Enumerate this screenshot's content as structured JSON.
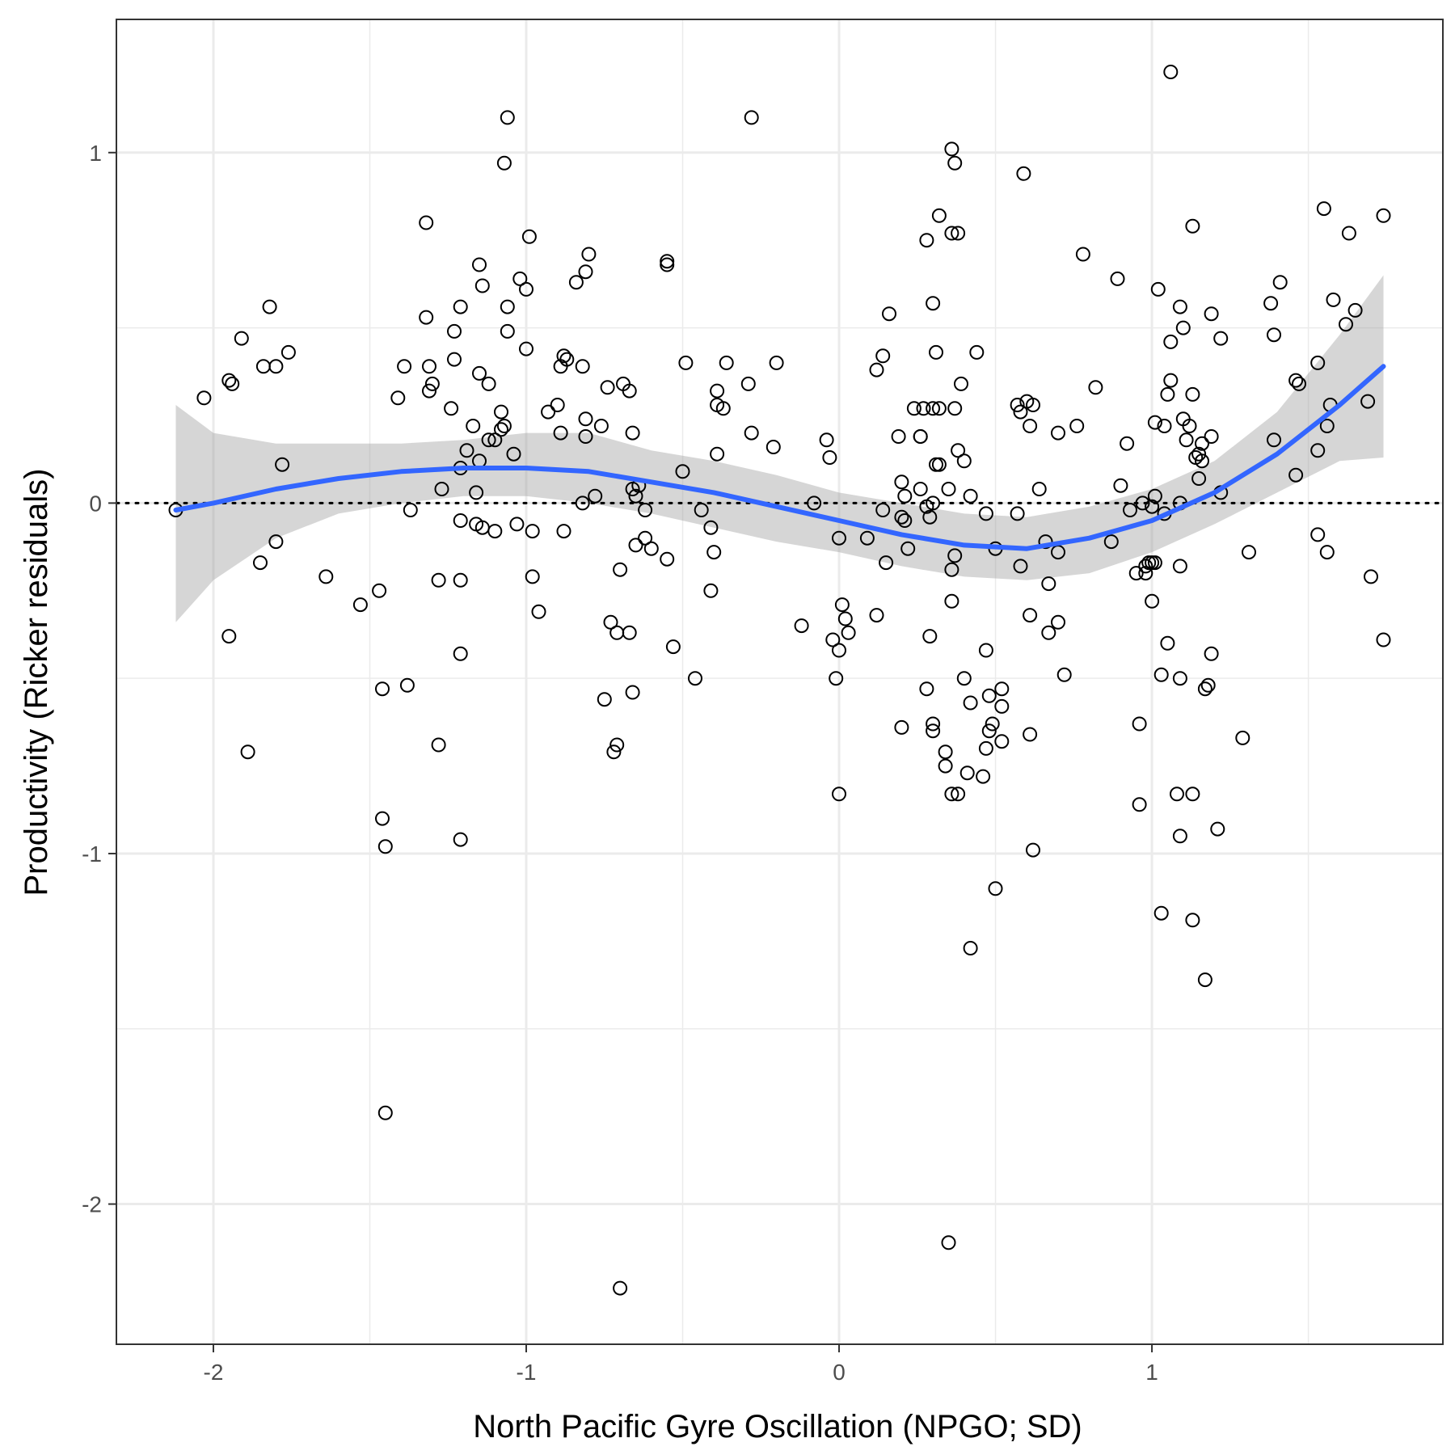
{
  "chart_data": {
    "type": "scatter",
    "title": "",
    "xlabel": "North Pacific Gyre Oscillation (NPGO; SD)",
    "ylabel": "Productivity (Ricker residuals)",
    "xlim": [
      -2.31,
      1.93
    ],
    "ylim": [
      -2.4,
      1.38
    ],
    "x_ticks": [
      -2,
      -1,
      0,
      1
    ],
    "x_tick_labels": [
      "-2",
      "-1",
      "0",
      "1"
    ],
    "y_ticks": [
      -2,
      -1,
      0,
      1
    ],
    "y_tick_labels": [
      "-2",
      "-1",
      "0",
      "1"
    ],
    "grid": true,
    "reference_line_y": 0,
    "colors": {
      "points": "#000000",
      "smooth_line": "#3366FF",
      "confidence_band": "#999999",
      "grid_major": "#EBEBEB",
      "panel_border": "#333333"
    },
    "smooth": {
      "x": [
        -2.12,
        -2.0,
        -1.8,
        -1.6,
        -1.4,
        -1.2,
        -1.0,
        -0.8,
        -0.6,
        -0.4,
        -0.2,
        0.0,
        0.2,
        0.4,
        0.6,
        0.8,
        1.0,
        1.2,
        1.4,
        1.6,
        1.74
      ],
      "y": [
        -0.02,
        0.0,
        0.04,
        0.07,
        0.09,
        0.1,
        0.1,
        0.09,
        0.06,
        0.03,
        -0.01,
        -0.05,
        -0.09,
        -0.12,
        -0.13,
        -0.1,
        -0.05,
        0.03,
        0.14,
        0.28,
        0.39
      ],
      "lower": [
        -0.34,
        -0.22,
        -0.1,
        -0.03,
        0.0,
        0.02,
        0.02,
        0.0,
        -0.03,
        -0.07,
        -0.11,
        -0.14,
        -0.18,
        -0.21,
        -0.22,
        -0.2,
        -0.14,
        -0.06,
        0.03,
        0.12,
        0.13
      ],
      "upper": [
        0.28,
        0.2,
        0.17,
        0.17,
        0.17,
        0.18,
        0.2,
        0.2,
        0.15,
        0.12,
        0.08,
        0.03,
        0.0,
        -0.03,
        -0.04,
        -0.01,
        0.04,
        0.12,
        0.26,
        0.48,
        0.65
      ]
    },
    "points": [
      [
        -2.12,
        -0.02
      ],
      [
        -2.03,
        0.3
      ],
      [
        -1.95,
        0.35
      ],
      [
        -1.95,
        -0.38
      ],
      [
        -1.94,
        0.34
      ],
      [
        -1.91,
        0.47
      ],
      [
        -1.89,
        -0.71
      ],
      [
        -1.85,
        -0.17
      ],
      [
        -1.84,
        0.39
      ],
      [
        -1.82,
        0.56
      ],
      [
        -1.8,
        0.39
      ],
      [
        -1.8,
        -0.11
      ],
      [
        -1.78,
        0.11
      ],
      [
        -1.76,
        0.43
      ],
      [
        -1.64,
        -0.21
      ],
      [
        -1.53,
        -0.29
      ],
      [
        -1.47,
        -0.25
      ],
      [
        -1.46,
        -0.53
      ],
      [
        -1.46,
        -0.9
      ],
      [
        -1.45,
        -0.98
      ],
      [
        -1.45,
        -1.74
      ],
      [
        -1.41,
        0.3
      ],
      [
        -1.39,
        0.39
      ],
      [
        -1.38,
        -0.52
      ],
      [
        -1.37,
        -0.02
      ],
      [
        -1.32,
        0.8
      ],
      [
        -1.32,
        0.53
      ],
      [
        -1.31,
        0.39
      ],
      [
        -1.31,
        0.32
      ],
      [
        -1.3,
        0.34
      ],
      [
        -1.28,
        -0.69
      ],
      [
        -1.28,
        -0.22
      ],
      [
        -1.27,
        0.04
      ],
      [
        -1.24,
        0.27
      ],
      [
        -1.23,
        0.49
      ],
      [
        -1.23,
        0.41
      ],
      [
        -1.21,
        0.56
      ],
      [
        -1.21,
        0.1
      ],
      [
        -1.21,
        -0.05
      ],
      [
        -1.21,
        -0.22
      ],
      [
        -1.21,
        -0.43
      ],
      [
        -1.21,
        -0.96
      ],
      [
        -1.19,
        0.15
      ],
      [
        -1.17,
        0.22
      ],
      [
        -1.16,
        0.03
      ],
      [
        -1.16,
        -0.06
      ],
      [
        -1.15,
        0.37
      ],
      [
        -1.15,
        0.68
      ],
      [
        -1.15,
        0.12
      ],
      [
        -1.14,
        0.62
      ],
      [
        -1.14,
        -0.07
      ],
      [
        -1.12,
        0.34
      ],
      [
        -1.12,
        0.18
      ],
      [
        -1.1,
        0.18
      ],
      [
        -1.1,
        -0.08
      ],
      [
        -1.08,
        0.26
      ],
      [
        -1.08,
        0.21
      ],
      [
        -1.07,
        0.22
      ],
      [
        -1.07,
        0.97
      ],
      [
        -1.06,
        1.1
      ],
      [
        -1.06,
        0.56
      ],
      [
        -1.06,
        0.49
      ],
      [
        -1.04,
        0.14
      ],
      [
        -1.03,
        -0.06
      ],
      [
        -1.02,
        0.64
      ],
      [
        -1.0,
        0.61
      ],
      [
        -1.0,
        0.44
      ],
      [
        -0.99,
        0.76
      ],
      [
        -0.98,
        -0.08
      ],
      [
        -0.98,
        -0.21
      ],
      [
        -0.96,
        -0.31
      ],
      [
        -0.93,
        0.26
      ],
      [
        -0.9,
        0.28
      ],
      [
        -0.89,
        0.39
      ],
      [
        -0.89,
        0.2
      ],
      [
        -0.88,
        0.42
      ],
      [
        -0.88,
        -0.08
      ],
      [
        -0.87,
        0.41
      ],
      [
        -0.84,
        0.63
      ],
      [
        -0.82,
        0.39
      ],
      [
        -0.82,
        -0.0
      ],
      [
        -0.81,
        0.66
      ],
      [
        -0.81,
        0.24
      ],
      [
        -0.81,
        0.19
      ],
      [
        -0.8,
        0.71
      ],
      [
        -0.78,
        0.02
      ],
      [
        -0.76,
        0.22
      ],
      [
        -0.75,
        -0.56
      ],
      [
        -0.74,
        0.33
      ],
      [
        -0.73,
        -0.34
      ],
      [
        -0.72,
        -0.71
      ],
      [
        -0.71,
        -0.69
      ],
      [
        -0.71,
        -0.37
      ],
      [
        -0.7,
        -0.19
      ],
      [
        -0.7,
        -2.24
      ],
      [
        -0.69,
        0.34
      ],
      [
        -0.67,
        -0.37
      ],
      [
        -0.67,
        0.32
      ],
      [
        -0.66,
        -0.54
      ],
      [
        -0.66,
        0.2
      ],
      [
        -0.66,
        0.04
      ],
      [
        -0.65,
        -0.12
      ],
      [
        -0.65,
        0.02
      ],
      [
        -0.64,
        0.05
      ],
      [
        -0.62,
        -0.1
      ],
      [
        -0.62,
        -0.02
      ],
      [
        -0.6,
        -0.13
      ],
      [
        -0.55,
        0.69
      ],
      [
        -0.55,
        0.68
      ],
      [
        -0.55,
        -0.16
      ],
      [
        -0.53,
        -0.41
      ],
      [
        -0.5,
        0.09
      ],
      [
        -0.49,
        0.4
      ],
      [
        -0.46,
        -0.5
      ],
      [
        -0.44,
        -0.02
      ],
      [
        -0.41,
        -0.07
      ],
      [
        -0.41,
        -0.25
      ],
      [
        -0.4,
        -0.14
      ],
      [
        -0.39,
        0.32
      ],
      [
        -0.39,
        0.28
      ],
      [
        -0.39,
        0.14
      ],
      [
        -0.37,
        0.27
      ],
      [
        -0.36,
        0.4
      ],
      [
        -0.29,
        0.34
      ],
      [
        -0.28,
        1.1
      ],
      [
        -0.28,
        0.2
      ],
      [
        -0.21,
        0.16
      ],
      [
        -0.2,
        0.4
      ],
      [
        -0.12,
        -0.35
      ],
      [
        -0.08,
        0.0
      ],
      [
        -0.04,
        0.18
      ],
      [
        -0.03,
        0.13
      ],
      [
        -0.02,
        -0.39
      ],
      [
        -0.01,
        -0.5
      ],
      [
        -0.0,
        -0.83
      ],
      [
        0.0,
        -0.1
      ],
      [
        0.0,
        -0.42
      ],
      [
        0.01,
        -0.29
      ],
      [
        0.02,
        -0.33
      ],
      [
        0.03,
        -0.37
      ],
      [
        0.09,
        -0.1
      ],
      [
        0.12,
        0.38
      ],
      [
        0.12,
        -0.32
      ],
      [
        0.14,
        0.42
      ],
      [
        0.14,
        -0.02
      ],
      [
        0.15,
        -0.17
      ],
      [
        0.16,
        0.54
      ],
      [
        0.19,
        0.19
      ],
      [
        0.2,
        0.06
      ],
      [
        0.2,
        -0.04
      ],
      [
        0.2,
        -0.64
      ],
      [
        0.21,
        0.02
      ],
      [
        0.21,
        -0.05
      ],
      [
        0.22,
        -0.13
      ],
      [
        0.24,
        0.27
      ],
      [
        0.26,
        0.19
      ],
      [
        0.26,
        0.19
      ],
      [
        0.26,
        0.04
      ],
      [
        0.27,
        0.27
      ],
      [
        0.28,
        -0.01
      ],
      [
        0.28,
        -0.53
      ],
      [
        0.28,
        0.75
      ],
      [
        0.29,
        -0.04
      ],
      [
        0.29,
        -0.38
      ],
      [
        0.3,
        0.27
      ],
      [
        0.3,
        0.0
      ],
      [
        0.3,
        -0.65
      ],
      [
        0.3,
        0.57
      ],
      [
        0.3,
        -0.63
      ],
      [
        0.31,
        0.43
      ],
      [
        0.31,
        0.11
      ],
      [
        0.32,
        0.82
      ],
      [
        0.32,
        0.11
      ],
      [
        0.32,
        0.27
      ],
      [
        0.34,
        -0.71
      ],
      [
        0.34,
        -0.75
      ],
      [
        0.35,
        0.04
      ],
      [
        0.35,
        -2.11
      ],
      [
        0.36,
        -0.19
      ],
      [
        0.36,
        -0.28
      ],
      [
        0.37,
        -0.15
      ],
      [
        0.36,
        1.01
      ],
      [
        0.37,
        0.97
      ],
      [
        0.36,
        0.77
      ],
      [
        0.36,
        -0.83
      ],
      [
        0.37,
        0.27
      ],
      [
        0.38,
        0.15
      ],
      [
        0.38,
        -0.83
      ],
      [
        0.38,
        0.77
      ],
      [
        0.39,
        0.34
      ],
      [
        0.4,
        0.12
      ],
      [
        0.4,
        -0.5
      ],
      [
        0.41,
        -0.77
      ],
      [
        0.42,
        -0.57
      ],
      [
        0.42,
        0.02
      ],
      [
        0.42,
        -1.27
      ],
      [
        0.44,
        0.43
      ],
      [
        0.46,
        -0.78
      ],
      [
        0.47,
        -0.03
      ],
      [
        0.47,
        -0.42
      ],
      [
        0.47,
        -0.7
      ],
      [
        0.48,
        -0.55
      ],
      [
        0.48,
        -0.65
      ],
      [
        0.49,
        -0.63
      ],
      [
        0.5,
        -0.13
      ],
      [
        0.5,
        -1.1
      ],
      [
        0.52,
        -0.53
      ],
      [
        0.52,
        -0.58
      ],
      [
        0.52,
        -0.68
      ],
      [
        0.57,
        -0.03
      ],
      [
        0.57,
        0.28
      ],
      [
        0.58,
        -0.18
      ],
      [
        0.58,
        0.26
      ],
      [
        0.59,
        0.94
      ],
      [
        0.6,
        0.29
      ],
      [
        0.61,
        -0.32
      ],
      [
        0.61,
        -0.66
      ],
      [
        0.61,
        0.22
      ],
      [
        0.62,
        0.28
      ],
      [
        0.62,
        -0.99
      ],
      [
        0.64,
        0.04
      ],
      [
        0.66,
        -0.11
      ],
      [
        0.67,
        -0.37
      ],
      [
        0.67,
        -0.23
      ],
      [
        0.7,
        0.2
      ],
      [
        0.7,
        -0.14
      ],
      [
        0.7,
        -0.34
      ],
      [
        0.72,
        -0.49
      ],
      [
        0.76,
        0.22
      ],
      [
        0.78,
        0.71
      ],
      [
        0.82,
        0.33
      ],
      [
        0.87,
        -0.11
      ],
      [
        0.89,
        0.64
      ],
      [
        0.9,
        0.05
      ],
      [
        0.92,
        0.17
      ],
      [
        0.93,
        -0.02
      ],
      [
        0.95,
        -0.2
      ],
      [
        0.96,
        -0.86
      ],
      [
        0.96,
        -0.63
      ],
      [
        0.97,
        -0.0
      ],
      [
        0.98,
        -0.2
      ],
      [
        0.98,
        -0.18
      ],
      [
        0.99,
        -0.17
      ],
      [
        1.0,
        -0.17
      ],
      [
        1.0,
        -0.01
      ],
      [
        1.0,
        -0.28
      ],
      [
        1.01,
        -0.17
      ],
      [
        1.01,
        0.02
      ],
      [
        1.01,
        0.23
      ],
      [
        1.02,
        0.61
      ],
      [
        1.03,
        -1.17
      ],
      [
        1.03,
        -0.49
      ],
      [
        1.04,
        -0.03
      ],
      [
        1.04,
        0.22
      ],
      [
        1.05,
        0.31
      ],
      [
        1.05,
        -0.4
      ],
      [
        1.06,
        0.46
      ],
      [
        1.06,
        0.35
      ],
      [
        1.06,
        1.23
      ],
      [
        1.08,
        -0.83
      ],
      [
        1.09,
        -0.18
      ],
      [
        1.09,
        -0.0
      ],
      [
        1.09,
        0.56
      ],
      [
        1.09,
        -0.5
      ],
      [
        1.09,
        -0.95
      ],
      [
        1.1,
        0.24
      ],
      [
        1.1,
        0.5
      ],
      [
        1.11,
        0.18
      ],
      [
        1.12,
        0.22
      ],
      [
        1.13,
        0.31
      ],
      [
        1.13,
        0.79
      ],
      [
        1.13,
        -0.83
      ],
      [
        1.13,
        -1.19
      ],
      [
        1.14,
        0.13
      ],
      [
        1.15,
        0.07
      ],
      [
        1.15,
        0.14
      ],
      [
        1.16,
        0.12
      ],
      [
        1.16,
        0.17
      ],
      [
        1.17,
        -0.53
      ],
      [
        1.17,
        -1.36
      ],
      [
        1.18,
        -0.52
      ],
      [
        1.19,
        0.19
      ],
      [
        1.19,
        0.54
      ],
      [
        1.19,
        -0.43
      ],
      [
        1.21,
        -0.93
      ],
      [
        1.22,
        0.47
      ],
      [
        1.22,
        0.03
      ],
      [
        1.29,
        -0.67
      ],
      [
        1.31,
        -0.14
      ],
      [
        1.38,
        0.57
      ],
      [
        1.39,
        0.48
      ],
      [
        1.39,
        0.18
      ],
      [
        1.41,
        0.63
      ],
      [
        1.46,
        0.35
      ],
      [
        1.46,
        0.08
      ],
      [
        1.47,
        0.34
      ],
      [
        1.53,
        0.4
      ],
      [
        1.53,
        0.15
      ],
      [
        1.53,
        -0.09
      ],
      [
        1.55,
        0.84
      ],
      [
        1.56,
        -0.14
      ],
      [
        1.56,
        0.22
      ],
      [
        1.57,
        0.28
      ],
      [
        1.58,
        0.58
      ],
      [
        1.62,
        0.51
      ],
      [
        1.63,
        0.77
      ],
      [
        1.65,
        0.55
      ],
      [
        1.69,
        0.29
      ],
      [
        1.7,
        -0.21
      ],
      [
        1.74,
        0.82
      ],
      [
        1.74,
        -0.39
      ]
    ]
  }
}
